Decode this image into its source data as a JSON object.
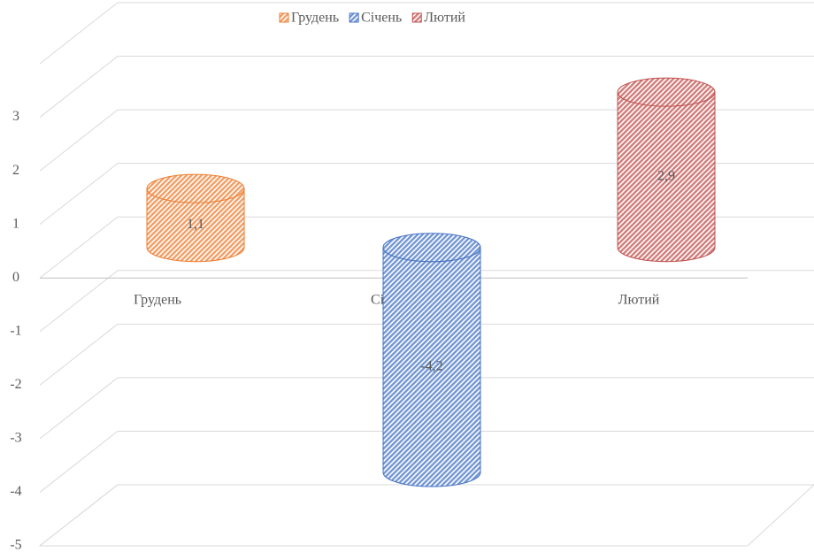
{
  "chart_data": {
    "type": "cylinder3d",
    "categories": [
      "Грудень",
      "Січень",
      "Лютий"
    ],
    "series": [
      {
        "name": "Грудень",
        "color": "#ed7d31",
        "values": [
          1.1,
          null,
          null
        ],
        "value_labels": [
          "1,1",
          null,
          null
        ]
      },
      {
        "name": "Січень",
        "color": "#4472c4",
        "values": [
          null,
          -4.2,
          null
        ],
        "value_labels": [
          null,
          "-4,2",
          null
        ]
      },
      {
        "name": "Лютий",
        "color": "#c0504d",
        "values": [
          null,
          null,
          2.9
        ],
        "value_labels": [
          null,
          null,
          "2,9"
        ]
      }
    ],
    "ylim": [
      -5,
      4
    ],
    "yticks": [
      -5,
      -4,
      -3,
      -2,
      -1,
      0,
      1,
      2,
      3
    ],
    "grid": true,
    "legend": "top"
  }
}
